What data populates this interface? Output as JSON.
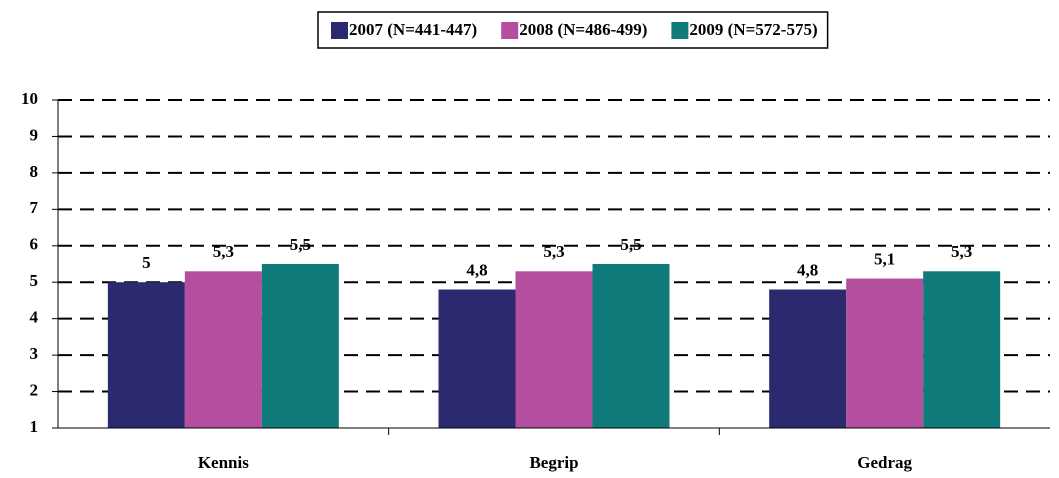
{
  "chart_data": {
    "type": "bar",
    "categories": [
      "Kennis",
      "Begrip",
      "Gedrag"
    ],
    "series": [
      {
        "name": "2007 (N=441-447)",
        "color": "#2b2a6e",
        "values": [
          5,
          4.8,
          4.8
        ],
        "value_labels": [
          "5",
          "4,8",
          "4,8"
        ]
      },
      {
        "name": "2008 (N=486-499)",
        "color": "#b44fa0",
        "values": [
          5.3,
          5.3,
          5.1
        ],
        "value_labels": [
          "5,3",
          "5,3",
          "5,1"
        ]
      },
      {
        "name": "2009 (N=572-575)",
        "color": "#0f7b7b",
        "values": [
          5.5,
          5.5,
          5.3
        ],
        "value_labels": [
          "5,5",
          "5,5",
          "5,3"
        ]
      }
    ],
    "ylim": [
      1,
      10
    ],
    "yticks": [
      1,
      2,
      3,
      4,
      5,
      6,
      7,
      8,
      9,
      10
    ],
    "grid": true,
    "legend": "top-right"
  }
}
